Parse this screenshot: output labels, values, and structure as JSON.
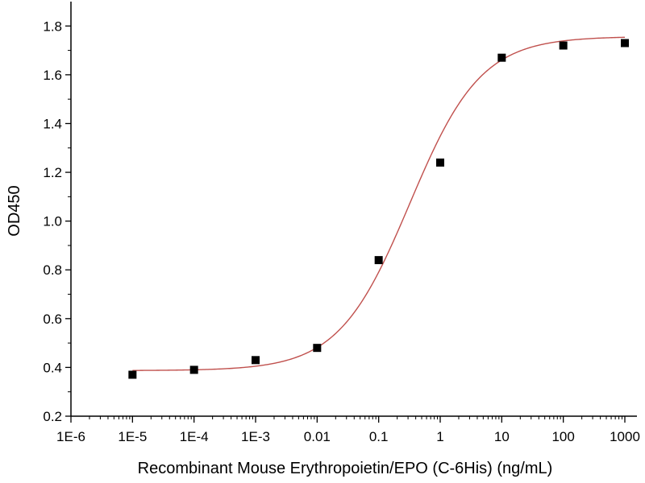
{
  "chart_data": {
    "type": "scatter",
    "xlabel": "Recombinant Mouse Erythropoietin/EPO (C-6His) (ng/mL)",
    "ylabel": "OD450",
    "x_scale": "log",
    "xlim": [
      1e-06,
      1000
    ],
    "ylim": [
      0.2,
      1.9
    ],
    "x_ticks": [
      1e-06,
      1e-05,
      0.0001,
      0.001,
      0.01,
      0.1,
      1,
      10,
      100,
      1000
    ],
    "x_tick_labels": [
      "1E-6",
      "1E-5",
      "1E-4",
      "1E-3",
      "0.01",
      "0.1",
      "1",
      "10",
      "100",
      "1000"
    ],
    "y_ticks": [
      0.2,
      0.4,
      0.6,
      0.8,
      1.0,
      1.2,
      1.4,
      1.6,
      1.8
    ],
    "y_tick_labels": [
      "0.2",
      "0.4",
      "0.6",
      "0.8",
      "1.0",
      "1.2",
      "1.4",
      "1.6",
      "1.8"
    ],
    "grid": false,
    "series": [
      {
        "type": "scatter",
        "marker": "square",
        "color": "#000000",
        "x": [
          1e-05,
          0.0001,
          0.001,
          0.01,
          0.1,
          1,
          10,
          100,
          1000
        ],
        "y": [
          0.37,
          0.39,
          0.43,
          0.48,
          0.84,
          1.24,
          1.67,
          1.72,
          1.73
        ]
      },
      {
        "type": "line",
        "fit": "4PL",
        "color": "#c0504d",
        "bottom": 0.387,
        "top": 1.757,
        "ec50": 0.32,
        "hill": 0.75
      }
    ]
  }
}
